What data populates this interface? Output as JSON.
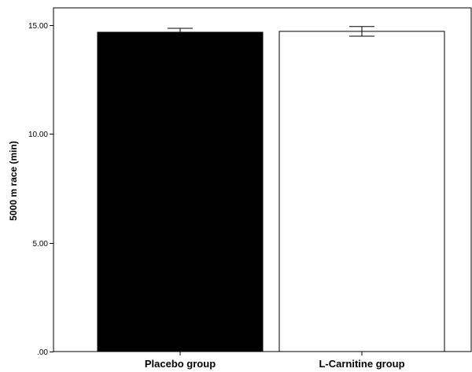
{
  "chart_data": {
    "type": "bar",
    "title": "",
    "xlabel": "",
    "ylabel": "5000 m race (min)",
    "ylim": [
      0,
      15.8
    ],
    "yticks": [
      0,
      5,
      10,
      15
    ],
    "ytick_labels": [
      ".00",
      "5.00",
      "10.00",
      "15.00"
    ],
    "grid": false,
    "categories": [
      "Placebo group",
      "L-Carnitine group"
    ],
    "values": [
      14.68,
      14.72
    ],
    "error": [
      0.18,
      0.22
    ],
    "bar_fill": [
      "#000000",
      "#ffffff"
    ],
    "bar_stroke": "#000000"
  }
}
